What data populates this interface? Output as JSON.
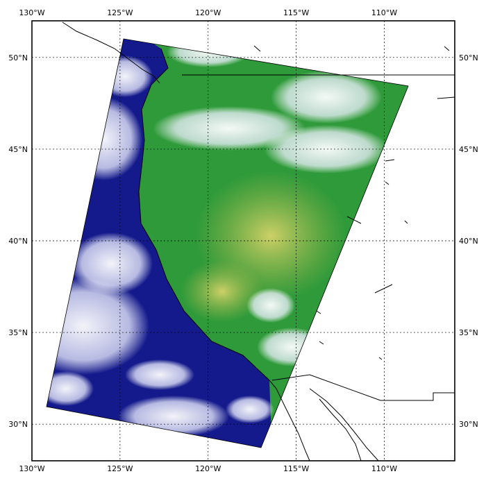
{
  "map": {
    "lon_range": [
      -130,
      -106
    ],
    "lat_range": [
      28,
      52
    ],
    "lon_ticks": [
      {
        "value": -130,
        "label": "130°W"
      },
      {
        "value": -125,
        "label": "125°W"
      },
      {
        "value": -120,
        "label": "120°W"
      },
      {
        "value": -115,
        "label": "115°W"
      },
      {
        "value": -110,
        "label": "110°W"
      }
    ],
    "lat_ticks": [
      {
        "value": 30,
        "label": "30°N"
      },
      {
        "value": 35,
        "label": "35°N"
      },
      {
        "value": 40,
        "label": "40°N"
      },
      {
        "value": 45,
        "label": "45°N"
      },
      {
        "value": 50,
        "label": "50°N"
      }
    ],
    "gridlines": "dotted",
    "colors": {
      "ocean": "#141a8c",
      "cloud": "#f4f4ff",
      "land_green": "#2e9a3a",
      "land_yellow": "#b7c04a",
      "coastline": "#000000",
      "gridline": "#000000"
    }
  }
}
